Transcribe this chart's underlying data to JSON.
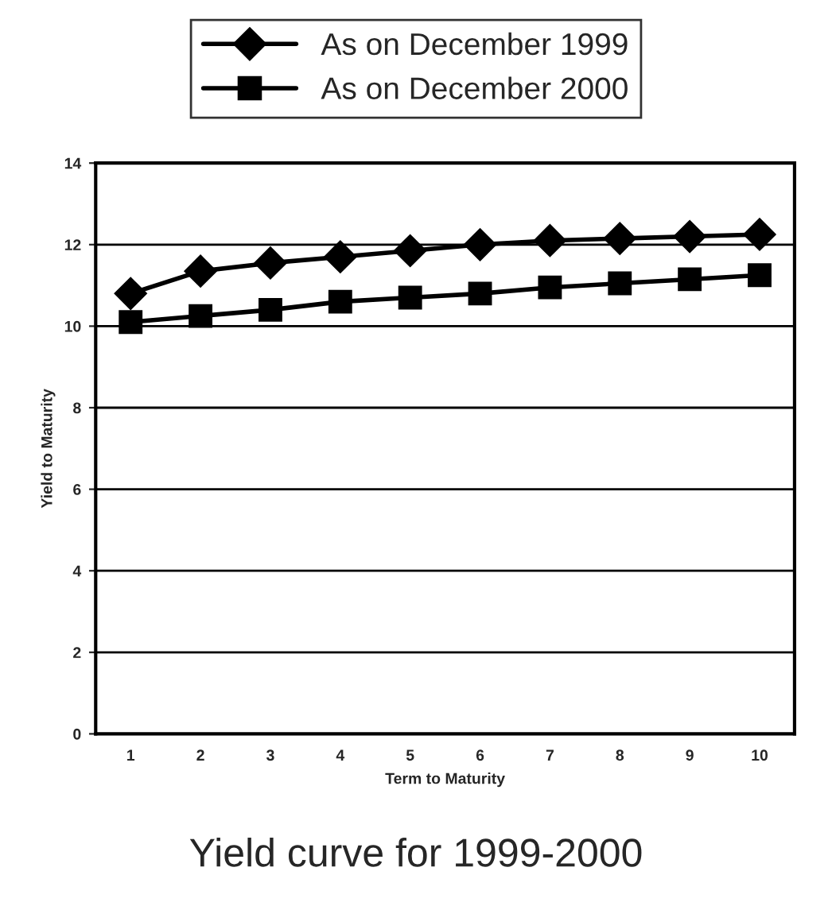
{
  "chart_data": {
    "type": "line",
    "title": "Yield curve for 1999-2000",
    "xlabel": "Term to Maturity",
    "ylabel": "Yield to Maturity",
    "categories": [
      "1",
      "2",
      "3",
      "4",
      "5",
      "6",
      "7",
      "8",
      "9",
      "10"
    ],
    "series": [
      {
        "name": "As on December 1999",
        "color": "#000000",
        "marker": "diamond",
        "values": [
          10.8,
          11.35,
          11.55,
          11.7,
          11.85,
          12.0,
          12.1,
          12.15,
          12.2,
          12.25
        ]
      },
      {
        "name": "As on December 2000",
        "color": "#000000",
        "marker": "square",
        "values": [
          10.1,
          10.25,
          10.4,
          10.6,
          10.7,
          10.8,
          10.95,
          11.05,
          11.15,
          11.25
        ]
      }
    ],
    "ylim": [
      0,
      14
    ],
    "yticks": [
      0,
      2,
      4,
      6,
      8,
      10,
      12,
      14
    ],
    "grid": "y",
    "legend": "top",
    "line_style": "solid"
  }
}
